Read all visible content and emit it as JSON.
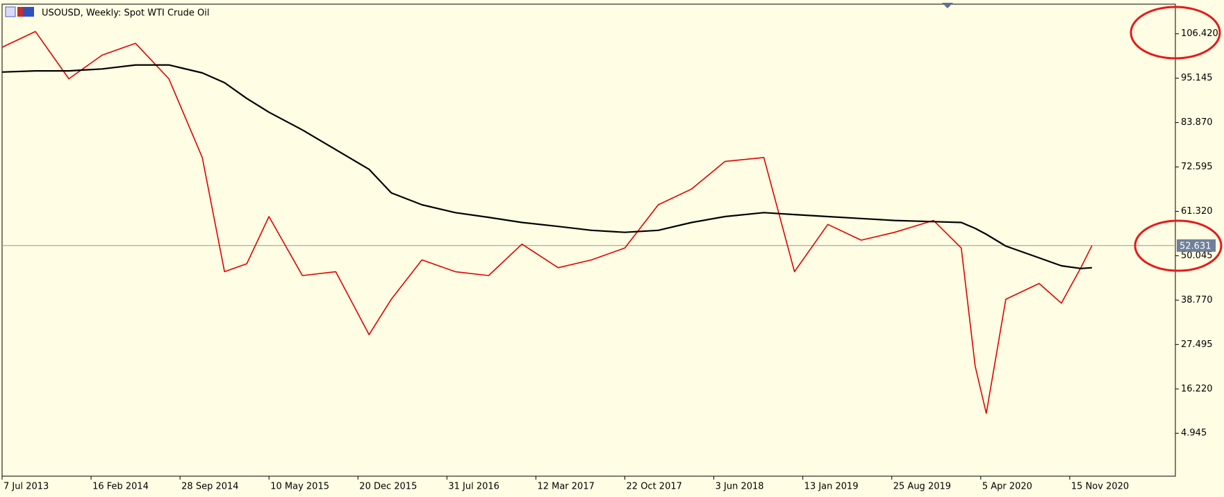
{
  "chart_data": {
    "type": "line",
    "title": "USOUSD, Weekly:  Spot WTI Crude Oil",
    "x": [
      "2013-07-07",
      "2013-09-29",
      "2013-12-22",
      "2014-03-16",
      "2014-06-08",
      "2014-08-31",
      "2014-11-23",
      "2015-01-18",
      "2015-03-15",
      "2015-05-10",
      "2015-08-02",
      "2015-10-25",
      "2016-01-17",
      "2016-03-13",
      "2016-05-29",
      "2016-08-21",
      "2016-11-13",
      "2017-02-05",
      "2017-05-07",
      "2017-07-30",
      "2017-10-22",
      "2018-01-14",
      "2018-04-08",
      "2018-07-01",
      "2018-10-07",
      "2018-12-23",
      "2019-03-17",
      "2019-06-09",
      "2019-09-01",
      "2019-12-08",
      "2020-02-16",
      "2020-03-22",
      "2020-04-19",
      "2020-06-07",
      "2020-08-30",
      "2020-10-25",
      "2020-12-13",
      "2021-01-10"
    ],
    "series": [
      {
        "color": "#e00000",
        "values": [
          103,
          107,
          95,
          101,
          104,
          95,
          75,
          46,
          48,
          60,
          45,
          46,
          30,
          39,
          49,
          46,
          45,
          53,
          47,
          49,
          52,
          63,
          67,
          74,
          75,
          46,
          58,
          54,
          56,
          59,
          52,
          22,
          10,
          39,
          43,
          38,
          47,
          52.631
        ]
      },
      {
        "color": "#000000",
        "values": [
          96.7,
          97,
          97,
          97.5,
          98.5,
          98.5,
          96.5,
          94,
          90,
          86.5,
          82,
          77,
          72,
          66,
          63,
          61,
          59.8,
          58.5,
          57.5,
          56.5,
          56,
          56.5,
          58.5,
          60,
          61,
          60.5,
          60,
          59.5,
          59,
          58.7,
          58.5,
          57,
          55.5,
          52.5,
          49.5,
          47.5,
          46.8,
          47
        ]
      }
    ],
    "last_price": 52.631,
    "xlim": [
      "2013-07-07",
      "2021-08-08"
    ],
    "xticks": [
      {
        "value": "2013-07-07",
        "label": "7 Jul 2013"
      },
      {
        "value": "2014-02-16",
        "label": "16 Feb 2014"
      },
      {
        "value": "2014-09-28",
        "label": "28 Sep 2014"
      },
      {
        "value": "2015-05-10",
        "label": "10 May 2015"
      },
      {
        "value": "2015-12-20",
        "label": "20 Dec 2015"
      },
      {
        "value": "2016-07-31",
        "label": "31 Jul 2016"
      },
      {
        "value": "2017-03-12",
        "label": "12 Mar 2017"
      },
      {
        "value": "2017-10-22",
        "label": "22 Oct 2017"
      },
      {
        "value": "2018-06-03",
        "label": "3 Jun 2018"
      },
      {
        "value": "2019-01-13",
        "label": "13 Jan 2019"
      },
      {
        "value": "2019-08-25",
        "label": "25 Aug 2019"
      },
      {
        "value": "2020-04-05",
        "label": "5 Apr 2020"
      },
      {
        "value": "2020-11-15",
        "label": "15 Nov 2020"
      }
    ],
    "ylim": [
      -5.95,
      113.95
    ],
    "yticks": [
      {
        "value": 106.42,
        "label": "106.420"
      },
      95.145,
      {
        "value": 83.87,
        "label": "83.870"
      },
      72.595,
      {
        "value": 61.32,
        "label": "61.320"
      },
      50.045,
      {
        "value": 38.77,
        "label": "38.770"
      },
      27.495,
      {
        "value": 16.22,
        "label": "16.220"
      },
      4.945
    ]
  }
}
